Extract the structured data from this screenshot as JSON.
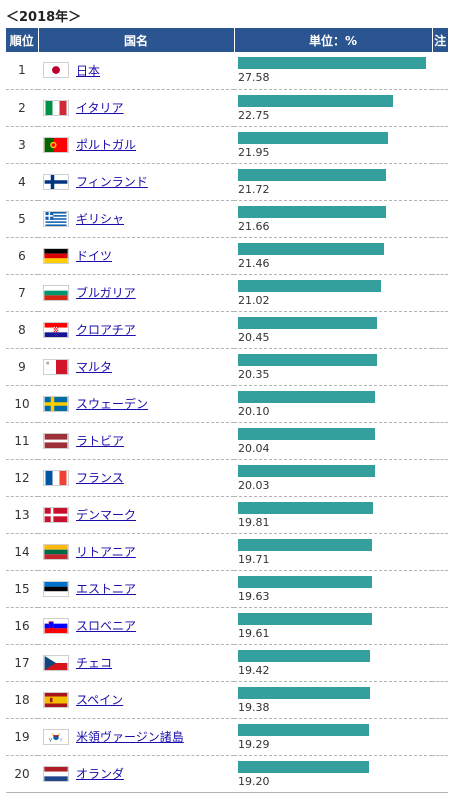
{
  "caption": "＜2018年＞",
  "headers": {
    "rank": "順位",
    "country": "国名",
    "unit": "単位：%",
    "note": "注"
  },
  "chart_data": {
    "type": "bar",
    "unit": "%",
    "categories": [
      "日本",
      "イタリア",
      "ポルトガル",
      "フィンランド",
      "ギリシャ",
      "ドイツ",
      "ブルガリア",
      "クロアチア",
      "マルタ",
      "スウェーデン",
      "ラトビア",
      "フランス",
      "デンマーク",
      "リトアニア",
      "エストニア",
      "スロベニア",
      "チェコ",
      "スペイン",
      "米領ヴァージン諸島",
      "オランダ"
    ],
    "values": [
      27.58,
      22.75,
      21.95,
      21.72,
      21.66,
      21.46,
      21.02,
      20.45,
      20.35,
      20.1,
      20.04,
      20.03,
      19.81,
      19.71,
      19.63,
      19.61,
      19.42,
      19.38,
      19.29,
      19.2
    ],
    "value_labels": [
      "27.58",
      "22.75",
      "21.95",
      "21.72",
      "21.66",
      "21.46",
      "21.02",
      "20.45",
      "20.35",
      "20.10",
      "20.04",
      "20.03",
      "19.81",
      "19.71",
      "19.63",
      "19.61",
      "19.42",
      "19.38",
      "19.29",
      "19.20"
    ],
    "ranks": [
      "1",
      "2",
      "3",
      "4",
      "5",
      "6",
      "7",
      "8",
      "9",
      "10",
      "11",
      "12",
      "13",
      "14",
      "15",
      "16",
      "17",
      "18",
      "19",
      "20"
    ],
    "flags": [
      "japan-flag",
      "italy-flag",
      "portugal-flag",
      "finland-flag",
      "greece-flag",
      "germany-flag",
      "bulgaria-flag",
      "croatia-flag",
      "malta-flag",
      "sweden-flag",
      "latvia-flag",
      "france-flag",
      "denmark-flag",
      "lithuania-flag",
      "estonia-flag",
      "slovenia-flag",
      "czech-flag",
      "spain-flag",
      "us-virgin-islands-flag",
      "netherlands-flag"
    ],
    "bar_color": "#34a09e"
  }
}
